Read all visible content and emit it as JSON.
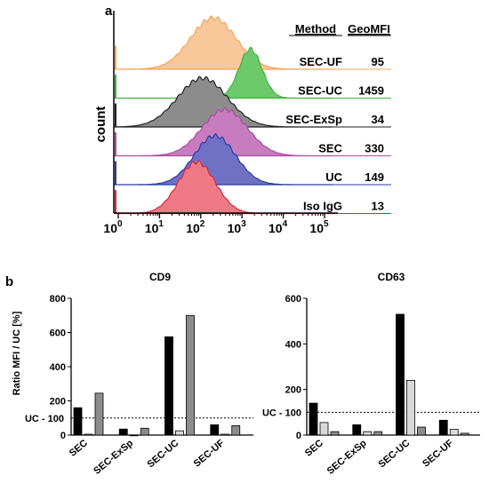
{
  "panel_a": {
    "label": "a",
    "y_label": "count",
    "table_headers": {
      "method": "Method",
      "geomfi": "GeoMFI"
    },
    "chart_data": {
      "type": "area",
      "xscale": "log",
      "xlim": [
        0.6,
        300000
      ],
      "x_ticks": [
        {
          "value": 1,
          "base": "10",
          "exp": "0"
        },
        {
          "value": 10,
          "base": "10",
          "exp": "1"
        },
        {
          "value": 100,
          "base": "10",
          "exp": "2"
        },
        {
          "value": 1000,
          "base": "10",
          "exp": "3"
        },
        {
          "value": 10000,
          "base": "10",
          "exp": "4"
        },
        {
          "value": 100000,
          "base": "10",
          "exp": "5"
        }
      ],
      "series": [
        {
          "method": "SEC-UF",
          "geomfi": "95",
          "color": "#f5a55a",
          "fill": "#f8c79a",
          "peak": 200,
          "width": 0.55,
          "height": 1.0
        },
        {
          "method": "SEC-UC",
          "geomfi": "1459",
          "color": "#3fb33f",
          "fill": "#6cc96c",
          "peak": 1600,
          "width": 0.28,
          "height": 0.95
        },
        {
          "method": "SEC-ExSp",
          "geomfi": "34",
          "color": "#222222",
          "fill": "#8c8c8c",
          "peak": 110,
          "width": 0.6,
          "height": 0.95
        },
        {
          "method": "SEC",
          "geomfi": "330",
          "color": "#b04aa0",
          "fill": "#c77cbf",
          "peak": 380,
          "width": 0.55,
          "height": 0.9
        },
        {
          "method": "UC",
          "geomfi": "149",
          "color": "#2a3aa8",
          "fill": "#6f72c4",
          "peak": 220,
          "width": 0.5,
          "height": 0.95
        },
        {
          "method": "Iso IgG",
          "geomfi": "13",
          "color": "#e0253a",
          "fill": "#ef7a86",
          "peak": 80,
          "width": 0.45,
          "height": 1.0
        }
      ]
    }
  },
  "panel_b": {
    "label": "b",
    "y_label": "Ratio MFI / UC [%]",
    "reference_label": "UC - 100",
    "reference_value": 100,
    "bar_colors": [
      "#000000",
      "#d9d9d9",
      "#8c8c8c"
    ],
    "chart_data": [
      {
        "type": "bar",
        "title": "CD9",
        "categories": [
          "SEC",
          "SEC-ExSp",
          "SEC-UC",
          "SEC-UF"
        ],
        "ylim": [
          0,
          800
        ],
        "yticks": [
          0,
          200,
          400,
          600,
          800
        ],
        "series": [
          {
            "values": [
              160,
              35,
              575,
              60
            ]
          },
          {
            "values": [
              5,
              0,
              25,
              5
            ]
          },
          {
            "values": [
              245,
              40,
              700,
              55
            ]
          }
        ]
      },
      {
        "type": "bar",
        "title": "CD63",
        "categories": [
          "SEC",
          "SEC-ExSp",
          "SEC-UC",
          "SEC-UF"
        ],
        "ylim": [
          0,
          600
        ],
        "yticks": [
          0,
          200,
          400,
          600
        ],
        "series": [
          {
            "values": [
              140,
              45,
              530,
              65
            ]
          },
          {
            "values": [
              55,
              15,
              240,
              25
            ]
          },
          {
            "values": [
              15,
              15,
              35,
              8
            ]
          }
        ]
      }
    ]
  }
}
